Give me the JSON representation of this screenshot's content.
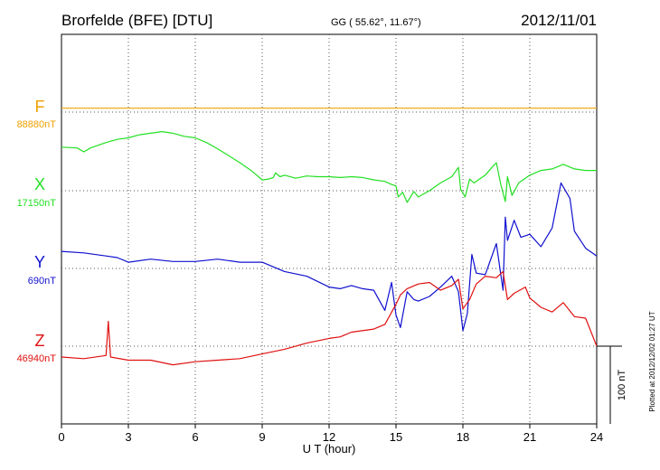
{
  "header": {
    "station": "Brorfelde (BFE)  [DTU]",
    "coords": "GG ( 55.62°,  11.67°)",
    "date": "2012/11/01"
  },
  "plotted_note": "Plotted at 2012/12/02 01:27 UT",
  "scale_label": "100 nT",
  "colors": {
    "F": "#f0a000",
    "X": "#22e022",
    "Y": "#1010d0",
    "Z": "#e01010"
  },
  "chart_data": {
    "type": "line",
    "xlabel": "U T (hour)",
    "xlim": [
      0,
      24
    ],
    "xticks": [
      0,
      3,
      6,
      9,
      12,
      15,
      18,
      21,
      24
    ],
    "xtick_labels": [
      "0",
      "3",
      "6",
      "9",
      "12",
      "15",
      "18",
      "21",
      "24"
    ],
    "scale_bar_nT": 100,
    "series": [
      {
        "name": "F",
        "baseline_label": "88880nT",
        "color": "#f0a000",
        "points": [
          [
            0,
            5
          ],
          [
            24,
            5
          ]
        ]
      },
      {
        "name": "X",
        "baseline_label": "17150nT",
        "color": "#22e022",
        "points": [
          [
            0,
            56
          ],
          [
            0.7,
            55
          ],
          [
            1.0,
            50
          ],
          [
            1.3,
            55
          ],
          [
            2,
            62
          ],
          [
            2.5,
            66
          ],
          [
            3,
            68
          ],
          [
            3.5,
            72
          ],
          [
            4,
            74
          ],
          [
            4.5,
            76
          ],
          [
            5,
            74
          ],
          [
            5.5,
            70
          ],
          [
            6,
            68
          ],
          [
            6.5,
            62
          ],
          [
            7,
            54
          ],
          [
            7.5,
            45
          ],
          [
            8,
            36
          ],
          [
            8.5,
            26
          ],
          [
            9,
            14
          ],
          [
            9.3,
            15
          ],
          [
            9.5,
            17
          ],
          [
            9.6,
            23
          ],
          [
            9.8,
            18
          ],
          [
            10,
            20
          ],
          [
            10.5,
            16
          ],
          [
            11,
            19
          ],
          [
            11.5,
            18
          ],
          [
            12,
            18
          ],
          [
            12.5,
            17
          ],
          [
            13,
            18
          ],
          [
            13.5,
            17
          ],
          [
            14,
            14
          ],
          [
            14.5,
            12
          ],
          [
            14.8,
            8
          ],
          [
            15,
            6
          ],
          [
            15.1,
            -8
          ],
          [
            15.3,
            -2
          ],
          [
            15.5,
            -15
          ],
          [
            15.8,
            -1
          ],
          [
            16,
            -8
          ],
          [
            16.5,
            0
          ],
          [
            17,
            10
          ],
          [
            17.5,
            18
          ],
          [
            17.8,
            30
          ],
          [
            17.9,
            2
          ],
          [
            18.1,
            -8
          ],
          [
            18.3,
            15
          ],
          [
            18.5,
            10
          ],
          [
            19,
            20
          ],
          [
            19.3,
            30
          ],
          [
            19.5,
            36
          ],
          [
            19.7,
            8
          ],
          [
            19.9,
            -14
          ],
          [
            20,
            18
          ],
          [
            20.2,
            -6
          ],
          [
            20.5,
            10
          ],
          [
            21,
            20
          ],
          [
            21.5,
            26
          ],
          [
            22,
            28
          ],
          [
            22.5,
            34
          ],
          [
            23,
            28
          ],
          [
            23.5,
            26
          ],
          [
            24,
            26
          ]
        ]
      },
      {
        "name": "Y",
        "baseline_label": "690nT",
        "color": "#1010d0",
        "points": [
          [
            0,
            22
          ],
          [
            1,
            20
          ],
          [
            2,
            16
          ],
          [
            2.5,
            14
          ],
          [
            3,
            8
          ],
          [
            4,
            12
          ],
          [
            5,
            9
          ],
          [
            6,
            9
          ],
          [
            7,
            12
          ],
          [
            8,
            8
          ],
          [
            9,
            8
          ],
          [
            10,
            -4
          ],
          [
            11,
            -10
          ],
          [
            12,
            -24
          ],
          [
            12.5,
            -26
          ],
          [
            13,
            -22
          ],
          [
            13.5,
            -26
          ],
          [
            14,
            -28
          ],
          [
            14.5,
            -54
          ],
          [
            14.8,
            -18
          ],
          [
            15,
            -60
          ],
          [
            15.2,
            -76
          ],
          [
            15.5,
            -30
          ],
          [
            15.8,
            -40
          ],
          [
            16,
            -42
          ],
          [
            16.5,
            -36
          ],
          [
            17,
            -24
          ],
          [
            17.5,
            -10
          ],
          [
            17.8,
            -30
          ],
          [
            18,
            -80
          ],
          [
            18.2,
            -58
          ],
          [
            18.4,
            18
          ],
          [
            18.6,
            -6
          ],
          [
            19,
            -8
          ],
          [
            19.5,
            32
          ],
          [
            19.8,
            -28
          ],
          [
            19.9,
            66
          ],
          [
            20,
            36
          ],
          [
            20.3,
            62
          ],
          [
            20.6,
            40
          ],
          [
            21,
            44
          ],
          [
            21.5,
            28
          ],
          [
            22,
            52
          ],
          [
            22.4,
            110
          ],
          [
            22.8,
            90
          ],
          [
            23,
            48
          ],
          [
            23.5,
            26
          ],
          [
            24,
            16
          ]
        ]
      },
      {
        "name": "Z",
        "baseline_label": "46940nT",
        "color": "#e01010",
        "points": [
          [
            0,
            -14
          ],
          [
            1,
            -16
          ],
          [
            2,
            -12
          ],
          [
            2.1,
            32
          ],
          [
            2.2,
            -14
          ],
          [
            3,
            -18
          ],
          [
            4,
            -18
          ],
          [
            5,
            -24
          ],
          [
            6,
            -20
          ],
          [
            7,
            -18
          ],
          [
            8,
            -16
          ],
          [
            9,
            -10
          ],
          [
            10,
            -4
          ],
          [
            11,
            4
          ],
          [
            12,
            10
          ],
          [
            12.5,
            12
          ],
          [
            13,
            18
          ],
          [
            14,
            22
          ],
          [
            14.5,
            28
          ],
          [
            15,
            54
          ],
          [
            15.2,
            66
          ],
          [
            15.5,
            74
          ],
          [
            16,
            80
          ],
          [
            16.5,
            82
          ],
          [
            17,
            72
          ],
          [
            17.5,
            78
          ],
          [
            17.8,
            86
          ],
          [
            18,
            48
          ],
          [
            18.3,
            60
          ],
          [
            18.6,
            80
          ],
          [
            19,
            90
          ],
          [
            19.5,
            88
          ],
          [
            19.8,
            96
          ],
          [
            20,
            60
          ],
          [
            20.3,
            68
          ],
          [
            20.8,
            76
          ],
          [
            21,
            62
          ],
          [
            21.5,
            50
          ],
          [
            22,
            44
          ],
          [
            22.5,
            56
          ],
          [
            23,
            38
          ],
          [
            23.5,
            36
          ],
          [
            24,
            0
          ]
        ]
      }
    ]
  }
}
